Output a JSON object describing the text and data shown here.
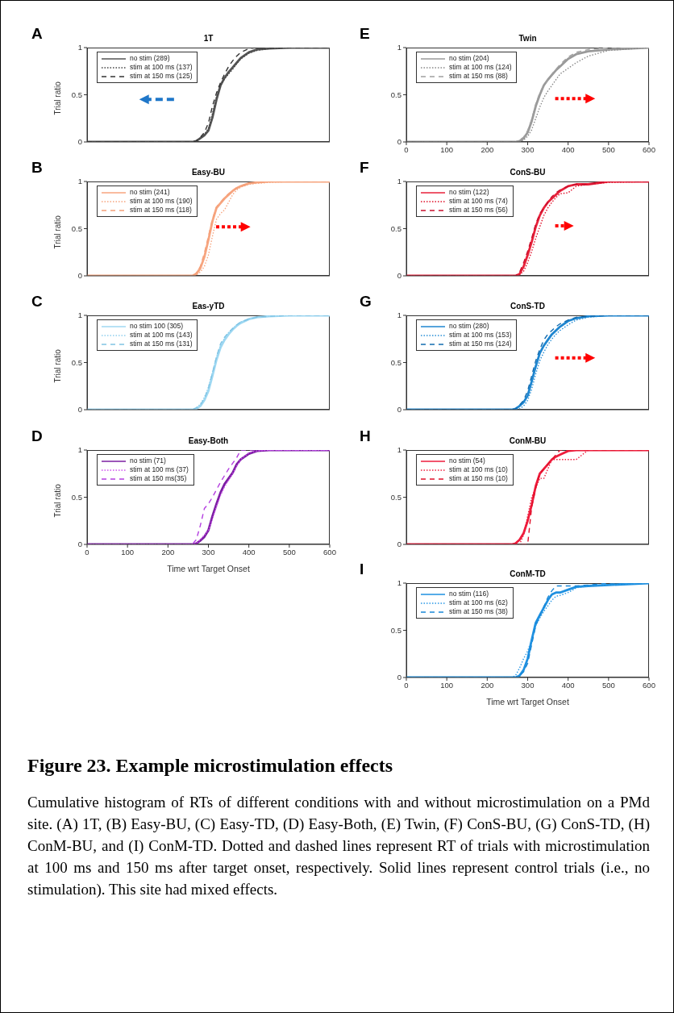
{
  "chart_data": [
    {
      "type": "line",
      "title": "1T",
      "ylabel": "Trial ratio",
      "annotations": [
        "A"
      ],
      "tick_labels": "y",
      "legend": "top left",
      "grid": false,
      "xlim": [
        0,
        600
      ],
      "xticks": [
        0,
        100,
        200,
        300,
        400,
        500,
        600
      ],
      "ylim": [
        0,
        1
      ],
      "yticks": [
        0,
        0.5,
        1
      ],
      "x": [
        0,
        250,
        260,
        270,
        280,
        290,
        300,
        310,
        320,
        330,
        340,
        350,
        360,
        370,
        380,
        400,
        420,
        450,
        500,
        600
      ],
      "series": [
        {
          "name": "no stim (289)",
          "color": "#555555",
          "line_style": "solid",
          "values": [
            0,
            0,
            0,
            0.01,
            0.04,
            0.07,
            0.12,
            0.26,
            0.45,
            0.6,
            0.68,
            0.74,
            0.79,
            0.84,
            0.89,
            0.95,
            0.98,
            0.99,
            1,
            1
          ]
        },
        {
          "name": "stim at 100 ms (137)",
          "color": "#444444",
          "line_style": "dotted",
          "values": [
            0,
            0,
            0,
            0.01,
            0.04,
            0.08,
            0.14,
            0.3,
            0.48,
            0.6,
            0.67,
            0.72,
            0.77,
            0.83,
            0.88,
            0.94,
            0.97,
            0.99,
            1,
            1
          ]
        },
        {
          "name": "stim at 150 ms (125)",
          "color": "#333333",
          "line_style": "dashed",
          "values": [
            0,
            0,
            0,
            0.01,
            0.05,
            0.1,
            0.2,
            0.38,
            0.52,
            0.63,
            0.72,
            0.8,
            0.86,
            0.91,
            0.95,
            0.99,
            1,
            1,
            1,
            1
          ]
        }
      ]
    },
    {
      "type": "line",
      "title": "Easy-BU",
      "ylabel": "Trial ratio",
      "annotations": [
        "B"
      ],
      "tick_labels": "y",
      "legend": "top left",
      "grid": false,
      "xlim": [
        0,
        600
      ],
      "xticks": [
        0,
        100,
        200,
        300,
        400,
        500,
        600
      ],
      "ylim": [
        0,
        1
      ],
      "yticks": [
        0,
        0.5,
        1
      ],
      "x": [
        0,
        250,
        260,
        270,
        280,
        290,
        300,
        310,
        320,
        330,
        340,
        350,
        360,
        370,
        380,
        400,
        420,
        450,
        500,
        600
      ],
      "series": [
        {
          "name": "no stim (241)",
          "color": "#f7a57f",
          "line_style": "solid",
          "values": [
            0,
            0,
            0,
            0.02,
            0.08,
            0.2,
            0.38,
            0.58,
            0.72,
            0.77,
            0.82,
            0.86,
            0.9,
            0.93,
            0.95,
            0.98,
            0.99,
            1,
            1,
            1
          ]
        },
        {
          "name": "stim at 100 ms (190)",
          "color": "#f7a57f",
          "line_style": "dotted",
          "values": [
            0,
            0,
            0,
            0.01,
            0.04,
            0.1,
            0.22,
            0.42,
            0.6,
            0.66,
            0.7,
            0.78,
            0.86,
            0.91,
            0.94,
            0.97,
            0.98,
            0.99,
            1,
            1
          ]
        },
        {
          "name": "stim at 150 ms (118)",
          "color": "#f4a07a",
          "line_style": "dashed",
          "values": [
            0,
            0,
            0,
            0.03,
            0.1,
            0.24,
            0.42,
            0.6,
            0.73,
            0.78,
            0.83,
            0.87,
            0.9,
            0.93,
            0.95,
            0.98,
            0.99,
            1,
            1,
            1
          ]
        }
      ]
    },
    {
      "type": "line",
      "title": "Eas-yTD",
      "ylabel": "Trial ratio",
      "annotations": [
        "C"
      ],
      "tick_labels": "y",
      "legend": "top left",
      "grid": false,
      "xlim": [
        0,
        600
      ],
      "xticks": [
        0,
        100,
        200,
        300,
        400,
        500,
        600
      ],
      "ylim": [
        0,
        1
      ],
      "yticks": [
        0,
        0.5,
        1
      ],
      "x": [
        0,
        250,
        260,
        270,
        280,
        290,
        300,
        310,
        320,
        330,
        340,
        350,
        360,
        370,
        380,
        400,
        420,
        450,
        500,
        600
      ],
      "series": [
        {
          "name": "no stim 100 (305)",
          "color": "#9fd8f2",
          "line_style": "solid",
          "values": [
            0,
            0,
            0,
            0.01,
            0.04,
            0.1,
            0.2,
            0.36,
            0.53,
            0.66,
            0.74,
            0.8,
            0.85,
            0.89,
            0.92,
            0.96,
            0.98,
            0.99,
            1,
            1
          ]
        },
        {
          "name": "stim at 100 ms (143)",
          "color": "#8fd0ee",
          "line_style": "dotted",
          "values": [
            0,
            0,
            0,
            0.02,
            0.06,
            0.13,
            0.24,
            0.4,
            0.56,
            0.68,
            0.76,
            0.82,
            0.86,
            0.9,
            0.93,
            0.96,
            0.98,
            0.99,
            1,
            1
          ]
        },
        {
          "name": "stim at 150 ms (131)",
          "color": "#80c4e4",
          "line_style": "dashed",
          "values": [
            0,
            0,
            0,
            0.02,
            0.05,
            0.12,
            0.23,
            0.39,
            0.56,
            0.7,
            0.77,
            0.82,
            0.86,
            0.9,
            0.93,
            0.96,
            0.98,
            0.99,
            1,
            1
          ]
        }
      ]
    },
    {
      "type": "line",
      "title": "Easy-Both",
      "xlabel": "Time wrt Target Onset",
      "ylabel": "Trial ratio",
      "annotations": [
        "D"
      ],
      "legend": "top left",
      "grid": false,
      "xlim": [
        0,
        600
      ],
      "xticks": [
        0,
        100,
        200,
        300,
        400,
        500,
        600
      ],
      "ylim": [
        0,
        1
      ],
      "yticks": [
        0,
        0.5,
        1
      ],
      "x": [
        0,
        250,
        260,
        270,
        280,
        290,
        300,
        310,
        320,
        330,
        340,
        350,
        360,
        370,
        380,
        400,
        420,
        450,
        500,
        600
      ],
      "series": [
        {
          "name": "no stim (71)",
          "color": "#7b1fa2",
          "line_style": "solid",
          "values": [
            0,
            0,
            0,
            0.01,
            0.04,
            0.08,
            0.15,
            0.3,
            0.43,
            0.55,
            0.64,
            0.7,
            0.76,
            0.85,
            0.9,
            0.96,
            0.99,
            1,
            1,
            1
          ]
        },
        {
          "name": "stim at 100 ms (37)",
          "color": "#d04df0",
          "line_style": "dotted",
          "values": [
            0,
            0,
            0,
            0.01,
            0.05,
            0.1,
            0.15,
            0.27,
            0.4,
            0.52,
            0.61,
            0.68,
            0.75,
            0.83,
            0.9,
            0.97,
            0.99,
            1,
            1,
            1
          ]
        },
        {
          "name": "stim at 150 ms(35)",
          "color": "#b43fe0",
          "line_style": "dashed",
          "values": [
            0,
            0,
            0,
            0.05,
            0.2,
            0.38,
            0.43,
            0.5,
            0.58,
            0.66,
            0.73,
            0.8,
            0.86,
            0.92,
            1,
            1,
            1,
            1,
            1,
            1
          ]
        }
      ]
    },
    {
      "type": "line",
      "title": "Twin",
      "annotations": [
        "E"
      ],
      "legend": "top left",
      "grid": false,
      "xlim": [
        0,
        600
      ],
      "xticks": [
        0,
        100,
        200,
        300,
        400,
        500,
        600
      ],
      "ylim": [
        0,
        1
      ],
      "yticks": [
        0,
        0.5,
        1
      ],
      "x": [
        0,
        250,
        260,
        270,
        280,
        290,
        300,
        310,
        320,
        330,
        340,
        350,
        360,
        370,
        380,
        400,
        420,
        450,
        500,
        600
      ],
      "series": [
        {
          "name": "no stim (204)",
          "color": "#9a9a9a",
          "line_style": "solid",
          "values": [
            0,
            0,
            0,
            0,
            0.01,
            0.04,
            0.1,
            0.22,
            0.38,
            0.5,
            0.6,
            0.66,
            0.71,
            0.76,
            0.8,
            0.88,
            0.93,
            0.96,
            0.98,
            1
          ]
        },
        {
          "name": "stim at 100 ms (124)",
          "color": "#888888",
          "line_style": "dotted",
          "values": [
            0,
            0,
            0,
            0,
            0,
            0.02,
            0.06,
            0.13,
            0.25,
            0.37,
            0.47,
            0.54,
            0.6,
            0.66,
            0.72,
            0.78,
            0.84,
            0.91,
            0.97,
            1
          ]
        },
        {
          "name": "stim at 150 ms (88)",
          "color": "#a0a0a0",
          "line_style": "dashed",
          "values": [
            0,
            0,
            0,
            0,
            0.02,
            0.05,
            0.12,
            0.24,
            0.4,
            0.52,
            0.6,
            0.66,
            0.72,
            0.77,
            0.82,
            0.9,
            0.95,
            0.98,
            1,
            1
          ]
        }
      ]
    },
    {
      "type": "line",
      "title": "ConS-BU",
      "annotations": [
        "F"
      ],
      "tick_labels": "y",
      "legend": "top left",
      "grid": false,
      "xlim": [
        0,
        600
      ],
      "xticks": [
        0,
        100,
        200,
        300,
        400,
        500,
        600
      ],
      "ylim": [
        0,
        1
      ],
      "yticks": [
        0,
        0.5,
        1
      ],
      "x": [
        0,
        250,
        260,
        270,
        280,
        290,
        300,
        310,
        320,
        330,
        340,
        350,
        360,
        370,
        380,
        400,
        420,
        450,
        500,
        600
      ],
      "series": [
        {
          "name": "no stim (122)",
          "color": "#e8213a",
          "line_style": "solid",
          "values": [
            0,
            0,
            0,
            0,
            0.02,
            0.1,
            0.22,
            0.36,
            0.52,
            0.64,
            0.72,
            0.78,
            0.82,
            0.86,
            0.9,
            0.95,
            0.97,
            0.97,
            1,
            1
          ]
        },
        {
          "name": "stim at 100 ms (74)",
          "color": "#e0102a",
          "line_style": "dotted",
          "values": [
            0,
            0,
            0,
            0,
            0.01,
            0.05,
            0.14,
            0.26,
            0.4,
            0.52,
            0.64,
            0.72,
            0.78,
            0.83,
            0.87,
            0.88,
            0.95,
            0.97,
            0.99,
            1
          ]
        },
        {
          "name": "stim at 150 ms (56)",
          "color": "#c8102e",
          "line_style": "dashed",
          "values": [
            0,
            0,
            0,
            0,
            0.04,
            0.14,
            0.26,
            0.4,
            0.55,
            0.66,
            0.72,
            0.78,
            0.84,
            0.88,
            0.91,
            0.95,
            0.97,
            0.97,
            1,
            1
          ]
        }
      ]
    },
    {
      "type": "line",
      "title": "ConS-TD",
      "annotations": [
        "G"
      ],
      "tick_labels": "y",
      "legend": "top left",
      "grid": false,
      "xlim": [
        0,
        600
      ],
      "xticks": [
        0,
        100,
        200,
        300,
        400,
        500,
        600
      ],
      "ylim": [
        0,
        1
      ],
      "yticks": [
        0,
        0.5,
        1
      ],
      "x": [
        0,
        250,
        260,
        270,
        280,
        290,
        300,
        310,
        320,
        330,
        340,
        350,
        360,
        370,
        380,
        400,
        420,
        450,
        500,
        600
      ],
      "series": [
        {
          "name": "no stim (280)",
          "color": "#1f86d0",
          "line_style": "solid",
          "values": [
            0,
            0,
            0,
            0.01,
            0.04,
            0.08,
            0.15,
            0.3,
            0.46,
            0.6,
            0.68,
            0.74,
            0.8,
            0.84,
            0.88,
            0.94,
            0.97,
            0.99,
            1,
            1
          ]
        },
        {
          "name": "stim at 100 ms (153)",
          "color": "#2a8fd6",
          "line_style": "dotted",
          "values": [
            0,
            0,
            0,
            0,
            0.01,
            0.04,
            0.1,
            0.22,
            0.38,
            0.52,
            0.61,
            0.69,
            0.75,
            0.8,
            0.84,
            0.9,
            0.95,
            0.98,
            1,
            1
          ]
        },
        {
          "name": "stim at 150 ms (124)",
          "color": "#136cb0",
          "line_style": "dashed",
          "values": [
            0,
            0,
            0,
            0.01,
            0.05,
            0.1,
            0.2,
            0.36,
            0.52,
            0.64,
            0.74,
            0.8,
            0.84,
            0.88,
            0.91,
            0.95,
            0.98,
            0.99,
            1,
            1
          ]
        }
      ]
    },
    {
      "type": "line",
      "title": "ConM-BU",
      "annotations": [
        "H"
      ],
      "tick_labels": "y",
      "legend": "top left",
      "grid": false,
      "xlim": [
        0,
        600
      ],
      "xticks": [
        0,
        100,
        200,
        300,
        400,
        500,
        600
      ],
      "ylim": [
        0,
        1
      ],
      "yticks": [
        0,
        0.5,
        1
      ],
      "x": [
        0,
        250,
        260,
        270,
        280,
        290,
        300,
        310,
        320,
        330,
        340,
        350,
        360,
        370,
        380,
        400,
        420,
        450,
        500,
        600
      ],
      "series": [
        {
          "name": "no stim (54)",
          "color": "#ee1c3c",
          "line_style": "solid",
          "values": [
            0,
            0,
            0,
            0.01,
            0.05,
            0.12,
            0.25,
            0.42,
            0.62,
            0.75,
            0.8,
            0.85,
            0.9,
            0.93,
            0.95,
            0.99,
            1,
            1,
            1,
            1
          ]
        },
        {
          "name": "stim at 100 ms (10)",
          "color": "#ee1c3c",
          "line_style": "dotted",
          "values": [
            0,
            0,
            0,
            0,
            0,
            0.1,
            0.3,
            0.5,
            0.6,
            0.7,
            0.7,
            0.8,
            0.9,
            0.9,
            0.9,
            0.9,
            0.9,
            1,
            1,
            1
          ]
        },
        {
          "name": "stim at 150 ms (10)",
          "color": "#e0102a",
          "line_style": "dashed",
          "values": [
            0,
            0,
            0,
            0,
            0,
            0,
            0,
            0.4,
            0.6,
            0.75,
            0.8,
            0.85,
            0.9,
            0.95,
            1,
            1,
            1,
            1,
            1,
            1
          ]
        }
      ]
    },
    {
      "type": "line",
      "title": "ConM-TD",
      "xlabel": "Time wrt Target Onset",
      "annotations": [
        "I",
        "Figure 23. Example microstimulation effects",
        "Cumulative histogram of RTs of different conditions with and without microstimulation on a PMd site. (A) 1T, (B) Easy-BU, (C) Easy-TD, (D) Easy-Both, (E) Twin, (F) ConS-BU, (G) ConS-TD, (H) ConM-BU, and (I) ConM-TD. Dotted and dashed lines represent RT of trials with microstimulation at 100 ms and 150 ms after target onset, respectively. Solid lines represent control trials (i.e., no stimulation). This site had mixed effects."
      ],
      "legend": "top left",
      "grid": false,
      "xlim": [
        0,
        600
      ],
      "xticks": [
        0,
        100,
        200,
        300,
        400,
        500,
        600
      ],
      "ylim": [
        0,
        1
      ],
      "yticks": [
        0,
        0.5,
        1
      ],
      "x": [
        0,
        250,
        260,
        270,
        280,
        290,
        300,
        310,
        320,
        330,
        340,
        350,
        360,
        370,
        380,
        400,
        420,
        450,
        500,
        600
      ],
      "series": [
        {
          "name": "no stim (116)",
          "color": "#1e90e0",
          "line_style": "solid",
          "values": [
            0,
            0,
            0,
            0,
            0.02,
            0.08,
            0.2,
            0.4,
            0.58,
            0.66,
            0.74,
            0.82,
            0.88,
            0.9,
            0.9,
            0.93,
            0.96,
            0.97,
            0.98,
            1
          ]
        },
        {
          "name": "stim at 100 ms (62)",
          "color": "#2a98e6",
          "line_style": "dotted",
          "values": [
            0,
            0,
            0,
            0.02,
            0.1,
            0.2,
            0.28,
            0.4,
            0.55,
            0.63,
            0.7,
            0.76,
            0.82,
            0.86,
            0.87,
            0.9,
            0.95,
            0.97,
            0.98,
            1
          ]
        },
        {
          "name": "stim at 150 ms (38)",
          "color": "#1a88d8",
          "line_style": "dashed",
          "values": [
            0,
            0,
            0,
            0,
            0.02,
            0.06,
            0.15,
            0.35,
            0.55,
            0.65,
            0.75,
            0.85,
            0.92,
            0.97,
            0.97,
            0.97,
            0.97,
            0.98,
            1,
            1
          ]
        }
      ]
    }
  ]
}
